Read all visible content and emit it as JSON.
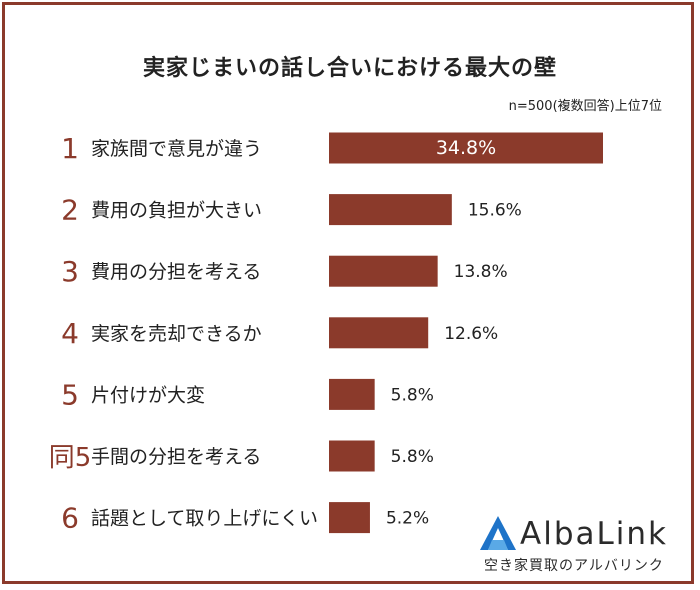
{
  "title": "実家じまいの話し合いにおける最大の壁",
  "note": "n=500(複数回答)上位7位",
  "brand": {
    "name": "AlbaLink",
    "tagline": "空き家買取のアルバリンク"
  },
  "colors": {
    "bar": "#8b3a2b",
    "rank": "#8b3a2b",
    "logo_blue": "#1e73c8"
  },
  "chart_data": {
    "type": "bar",
    "orientation": "horizontal",
    "ranks": [
      "1",
      "2",
      "3",
      "4",
      "5",
      "同5",
      "6"
    ],
    "categories": [
      "家族間で意見が違う",
      "費用の負担が大きい",
      "費用の分担を考える",
      "実家を売却できるか",
      "片付けが大変",
      "手間の分担を考える",
      "話題として取り上げにくい"
    ],
    "values": [
      34.8,
      15.6,
      13.8,
      12.6,
      5.8,
      5.8,
      5.2
    ],
    "value_labels": [
      "34.8%",
      "15.6%",
      "13.8%",
      "12.6%",
      "5.8%",
      "5.8%",
      "5.2%"
    ],
    "unit": "%",
    "grid": false,
    "legend": "none"
  }
}
